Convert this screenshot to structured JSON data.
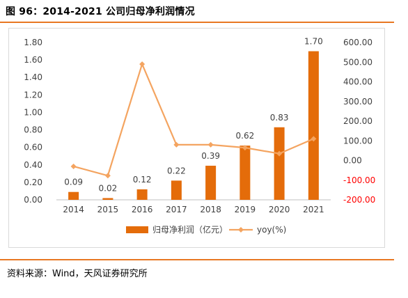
{
  "figure": {
    "title": "图 96：2014-2021 公司归母净利润情况",
    "source": "资料来源：Wind，天风证券研究所"
  },
  "colors": {
    "accent": "#e87722",
    "bar": "#e46c0a",
    "line": "#f4a460",
    "negative_tick": "#ff0000"
  },
  "chart_data": {
    "type": "bar",
    "categories": [
      "2014",
      "2015",
      "2016",
      "2017",
      "2018",
      "2019",
      "2020",
      "2021"
    ],
    "series": [
      {
        "name": "归母净利润（亿元）",
        "type": "bar",
        "axis": "left",
        "values": [
          0.09,
          0.02,
          0.12,
          0.22,
          0.39,
          0.62,
          0.83,
          1.7
        ],
        "labels": [
          "0.09",
          "0.02",
          "0.12",
          "0.22",
          "0.39",
          "0.62",
          "0.83",
          "1.70"
        ]
      },
      {
        "name": "yoy(%)",
        "type": "line",
        "axis": "right",
        "values": [
          -30,
          -77,
          490,
          80,
          80,
          65,
          35,
          110
        ]
      }
    ],
    "left_axis": {
      "ylim": [
        0,
        1.8
      ],
      "ticks": [
        "0.00",
        "0.20",
        "0.40",
        "0.60",
        "0.80",
        "1.00",
        "1.20",
        "1.40",
        "1.60",
        "1.80"
      ]
    },
    "right_axis": {
      "ylim": [
        -200,
        600
      ],
      "ticks": [
        "-200.00",
        "-100.00",
        "0.00",
        "100.00",
        "200.00",
        "300.00",
        "400.00",
        "500.00",
        "600.00"
      ]
    },
    "legend_position": "bottom",
    "grid": false
  }
}
